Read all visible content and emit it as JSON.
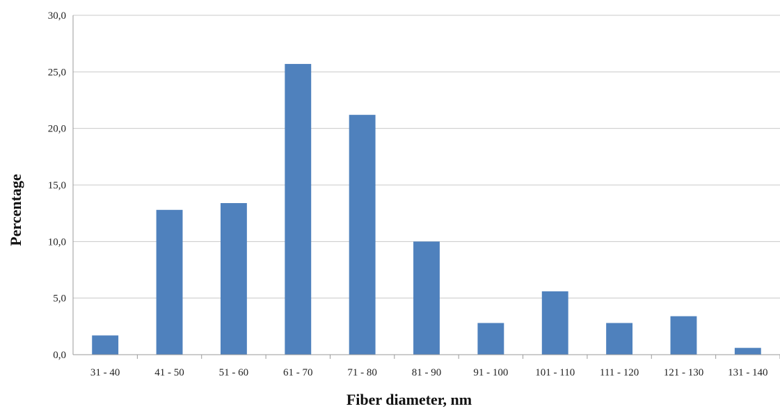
{
  "chart_data": {
    "type": "bar",
    "title": "",
    "xlabel": "Fiber diameter, nm",
    "ylabel": "Percentage",
    "categories": [
      "31 - 40",
      "41 - 50",
      "51 - 60",
      "61 - 70",
      "71 - 80",
      "81 - 90",
      "91 - 100",
      "101 - 110",
      "111 - 120",
      "121 - 130",
      "131 - 140"
    ],
    "values": [
      1.7,
      12.8,
      13.4,
      25.7,
      21.2,
      10.0,
      2.8,
      5.6,
      2.8,
      3.4,
      0.6
    ],
    "ylim": [
      0,
      30
    ],
    "yticks": [
      "0,0",
      "5,0",
      "10,0",
      "15,0",
      "20,0",
      "25,0",
      "30,0"
    ],
    "grid": "horizontal",
    "legend": "none",
    "bar_color": "#4f81bd",
    "grid_color": "#c8c8c8"
  }
}
